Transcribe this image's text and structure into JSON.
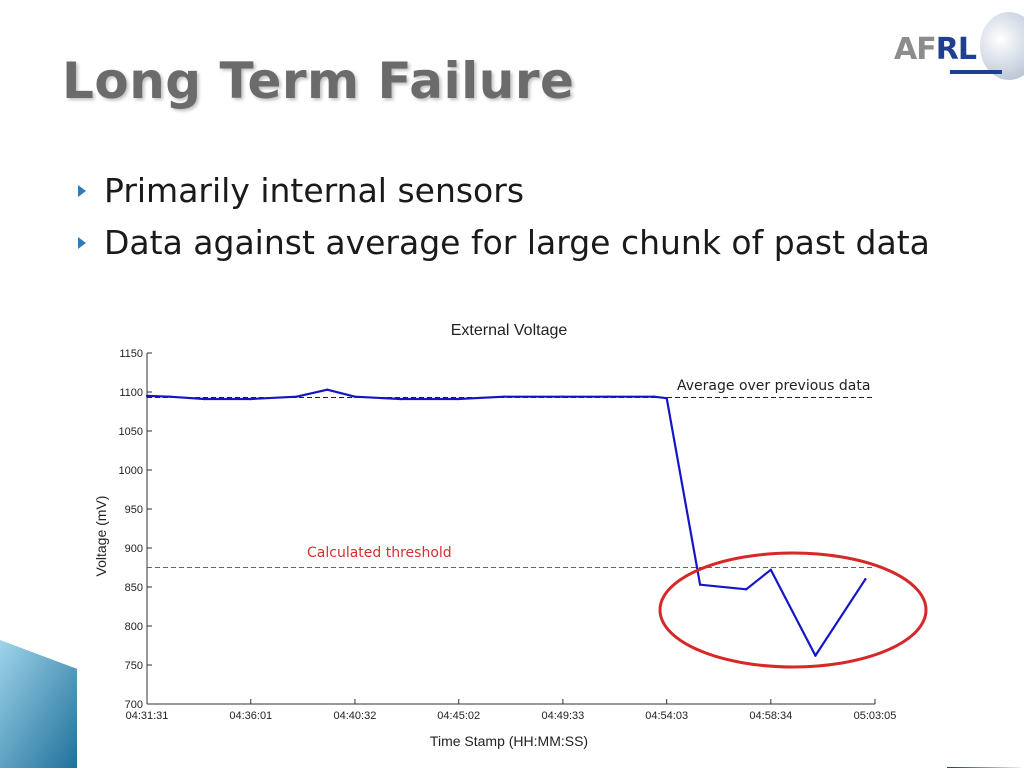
{
  "slide": {
    "title": "Long Term Failure",
    "logo_text_a": "AF",
    "logo_text_b": "RL",
    "bullets": [
      "Primarily internal sensors",
      "Data against average for large chunk of past data"
    ]
  },
  "colors": {
    "series": "#1515c8",
    "average": "#222222",
    "threshold": "#d43030",
    "ellipse": "#d62828",
    "bullet_marker": "#2e7bb8",
    "title": "#6b6b6b"
  },
  "chart_data": {
    "type": "line",
    "title": "External Voltage",
    "xlabel": "Time Stamp (HH:MM:SS)",
    "ylabel": "Voltage (mV)",
    "ylim": [
      700,
      1150
    ],
    "yticks": [
      700,
      750,
      800,
      850,
      900,
      950,
      1000,
      1050,
      1100,
      1150
    ],
    "xtick_labels": [
      "04:31:31",
      "04:36:01",
      "04:40:32",
      "04:45:02",
      "04:49:33",
      "04:54:03",
      "04:58:34",
      "05:03:05"
    ],
    "xlim_seconds": [
      16291,
      18185
    ],
    "series": [
      {
        "x": [
          "04:31:31",
          "04:32:30",
          "04:34:00",
          "04:36:00",
          "04:38:00",
          "04:39:20",
          "04:40:32",
          "04:42:30",
          "04:45:00",
          "04:47:00",
          "04:49:33",
          "04:51:30",
          "04:53:30",
          "04:54:03",
          "04:55:30",
          "04:57:30",
          "04:58:34",
          "05:00:30",
          "05:02:40"
        ],
        "values": [
          1095,
          1094,
          1091,
          1091,
          1094,
          1103,
          1094,
          1091,
          1091,
          1094,
          1094,
          1094,
          1094,
          1092,
          853,
          847,
          872,
          762,
          860
        ]
      }
    ],
    "reference_lines": {
      "average": {
        "label": "Average over previous data",
        "value": 1093
      },
      "threshold": {
        "label": "Calculated threshold",
        "value": 875
      }
    }
  }
}
